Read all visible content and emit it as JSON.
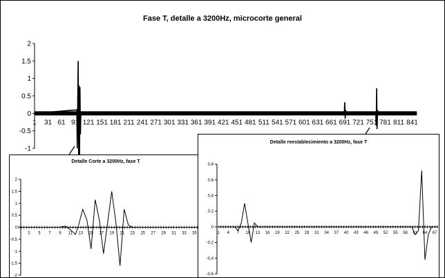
{
  "chart_data": [
    {
      "id": "main",
      "type": "line",
      "title": "Fase T, detalle a 3200Hz, microcorte general",
      "xlabel": "",
      "ylabel": "",
      "ylim": [
        -1,
        2
      ],
      "xlim": [
        1,
        851
      ],
      "y_ticks": [
        -1,
        -0.5,
        0,
        0.5,
        1,
        1.5,
        2
      ],
      "y_tick_labels": [
        "-1",
        "-0.5",
        "0",
        "0.5",
        "1",
        "1.5",
        "2"
      ],
      "x_ticks": [
        1,
        31,
        61,
        91,
        121,
        151,
        181,
        211,
        241,
        271,
        301,
        331,
        361,
        391,
        421,
        451,
        481,
        511,
        541,
        571,
        601,
        631,
        661,
        691,
        721,
        751,
        781,
        811,
        841
      ],
      "x_tick_labels": [
        "1",
        "31",
        "61",
        "91",
        "121",
        "151",
        "181",
        "211",
        "241",
        "271",
        "301",
        "331",
        "361",
        "391",
        "421",
        "451",
        "481",
        "511",
        "541",
        "571",
        "601",
        "631",
        "661",
        "691",
        "721",
        "751",
        "781",
        "811",
        "841"
      ],
      "grid": false,
      "legend": "none",
      "series": [
        {
          "color": "#000000",
          "x": [
            1,
            95,
            96,
            97,
            98,
            99,
            100,
            101,
            102,
            103,
            104,
            690,
            691,
            692,
            693,
            694,
            760,
            761,
            762,
            763,
            764,
            765,
            851
          ],
          "y": [
            0,
            0.1,
            -1.0,
            0.3,
            1.5,
            -1.2,
            0.8,
            -1.3,
            0.75,
            -0.6,
            0,
            0,
            0.32,
            -0.15,
            0.1,
            0,
            0,
            -0.35,
            0.72,
            -0.45,
            0.1,
            0,
            0
          ]
        }
      ]
    },
    {
      "id": "corte",
      "type": "line",
      "title": "Detalle Corte a 3200Hz, fase T",
      "xlabel": "",
      "ylabel": "",
      "ylim": [
        -2,
        2
      ],
      "xlim": [
        1,
        36
      ],
      "y_ticks": [
        -2,
        -1.5,
        -1,
        -0.5,
        0,
        0.5,
        1,
        1.5,
        2
      ],
      "y_tick_labels": [
        "-2",
        "-1.5",
        "-1",
        "-0.5",
        "0",
        "0.5",
        "1",
        "1.5",
        "2"
      ],
      "x_ticks": [
        3,
        5,
        7,
        9,
        11,
        13,
        15,
        17,
        19,
        21,
        23,
        25,
        27,
        29,
        31,
        33,
        35
      ],
      "x_tick_labels": [
        "3",
        "5",
        "7",
        "9",
        "11",
        "13",
        "15",
        "17",
        "19",
        "21",
        "23",
        "25",
        "27",
        "29",
        "31",
        "33",
        "35"
      ],
      "grid": false,
      "legend": "none",
      "series": [
        {
          "color": "#000000",
          "x": [
            1,
            9,
            10,
            11,
            12,
            12.6,
            13.4,
            14.2,
            15,
            15.8,
            16.6,
            17.4,
            18.2,
            19,
            19.8,
            20.6,
            21.4,
            22.2,
            23,
            36
          ],
          "y": [
            0,
            0,
            0.05,
            -0.1,
            -0.3,
            0.1,
            0.75,
            0.3,
            -0.9,
            1.15,
            0.3,
            -1.1,
            0.2,
            1.5,
            0.2,
            -1.6,
            0.75,
            0.1,
            0,
            0
          ]
        }
      ]
    },
    {
      "id": "reestablecimiento",
      "type": "line",
      "title": "Detalle reestablecimiento a 3200Hz, fase T",
      "xlabel": "",
      "ylabel": "",
      "ylim": [
        -0.6,
        0.8
      ],
      "xlim": [
        1,
        68
      ],
      "y_ticks": [
        -0.6,
        -0.4,
        -0.2,
        0,
        0.2,
        0.4,
        0.6,
        0.8
      ],
      "y_tick_labels": [
        "-0.6",
        "-0.4",
        "-0.2",
        "0",
        "0.2",
        "0.4",
        "0.6",
        "0.8"
      ],
      "x_ticks": [
        1,
        4,
        7,
        10,
        13,
        16,
        19,
        22,
        25,
        28,
        31,
        34,
        37,
        40,
        43,
        46,
        49,
        52,
        55,
        58,
        61,
        64,
        67
      ],
      "x_tick_labels": [
        "1",
        "4",
        "7",
        "10",
        "13",
        "16",
        "19",
        "22",
        "25",
        "28",
        "31",
        "34",
        "37",
        "40",
        "43",
        "46",
        "49",
        "52",
        "55",
        "58",
        "61",
        "64",
        "67"
      ],
      "grid": false,
      "legend": "none",
      "series": [
        {
          "color": "#000000",
          "x": [
            1,
            6,
            7,
            8,
            9,
            10,
            11,
            12,
            13,
            60,
            61,
            62,
            63,
            64,
            65,
            66,
            68
          ],
          "y": [
            0,
            0,
            -0.05,
            0.05,
            0.3,
            0.05,
            -0.2,
            0.05,
            0,
            0,
            -0.1,
            -0.05,
            0.72,
            -0.42,
            -0.1,
            0,
            0
          ]
        }
      ]
    }
  ]
}
